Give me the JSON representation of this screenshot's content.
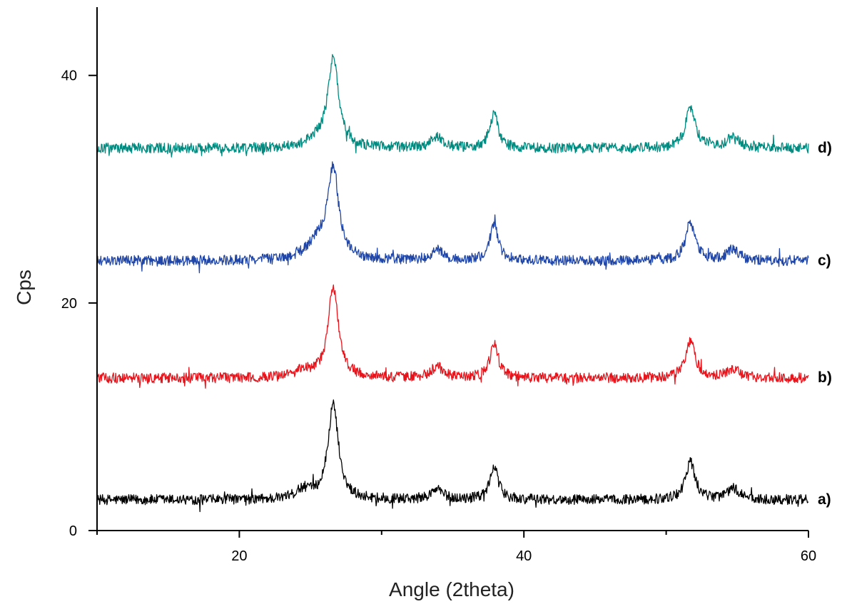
{
  "chart_data": {
    "type": "line",
    "title": "",
    "xlabel": "Angle (2theta)",
    "ylabel": "Cps",
    "xlim": [
      10,
      60
    ],
    "ylim": [
      0,
      46
    ],
    "x_ticks_major": [
      20,
      40,
      60
    ],
    "x_ticks_minor": [
      10,
      30,
      50
    ],
    "y_ticks": [
      0,
      20,
      40
    ],
    "grid": false,
    "legend": "none",
    "noise_amplitude": 0.45,
    "series": [
      {
        "name": "a)",
        "color": "#000000",
        "baseline": 2.7,
        "peaks": [
          {
            "x": 24.5,
            "height": 0.8,
            "width": 0.6
          },
          {
            "x": 26.6,
            "height": 8.3,
            "width": 0.45
          },
          {
            "x": 33.9,
            "height": 0.9,
            "width": 0.5
          },
          {
            "x": 37.9,
            "height": 2.9,
            "width": 0.35
          },
          {
            "x": 51.7,
            "height": 3.3,
            "width": 0.4
          },
          {
            "x": 54.7,
            "height": 1.0,
            "width": 0.5
          }
        ]
      },
      {
        "name": "b)",
        "color": "#e8141c",
        "baseline": 13.4,
        "peaks": [
          {
            "x": 24.5,
            "height": 0.6,
            "width": 0.6
          },
          {
            "x": 26.6,
            "height": 8.0,
            "width": 0.45
          },
          {
            "x": 33.9,
            "height": 1.0,
            "width": 0.5
          },
          {
            "x": 37.9,
            "height": 3.0,
            "width": 0.35
          },
          {
            "x": 51.7,
            "height": 3.3,
            "width": 0.4
          },
          {
            "x": 54.7,
            "height": 0.8,
            "width": 0.5
          }
        ]
      },
      {
        "name": "c)",
        "color": "#2046a8",
        "baseline": 23.7,
        "peaks": [
          {
            "x": 25.6,
            "height": 1.6,
            "width": 1.0
          },
          {
            "x": 26.6,
            "height": 7.6,
            "width": 0.45
          },
          {
            "x": 33.9,
            "height": 0.9,
            "width": 0.5
          },
          {
            "x": 37.9,
            "height": 3.2,
            "width": 0.35
          },
          {
            "x": 51.7,
            "height": 3.4,
            "width": 0.4
          },
          {
            "x": 54.7,
            "height": 1.0,
            "width": 0.5
          }
        ]
      },
      {
        "name": "d)",
        "color": "#008b80",
        "baseline": 33.6,
        "peaks": [
          {
            "x": 25.5,
            "height": 0.6,
            "width": 0.8
          },
          {
            "x": 26.6,
            "height": 7.9,
            "width": 0.45
          },
          {
            "x": 33.9,
            "height": 1.0,
            "width": 0.5
          },
          {
            "x": 37.9,
            "height": 3.0,
            "width": 0.35
          },
          {
            "x": 51.7,
            "height": 3.6,
            "width": 0.4
          },
          {
            "x": 54.7,
            "height": 1.0,
            "width": 0.5
          }
        ]
      }
    ]
  }
}
